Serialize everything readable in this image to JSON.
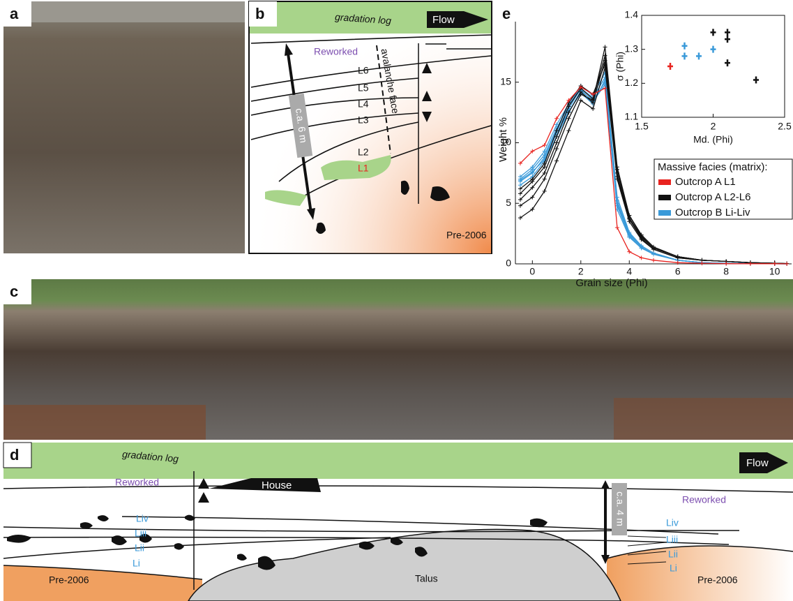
{
  "panel_labels": [
    "a",
    "b",
    "c",
    "d",
    "e"
  ],
  "diagram_b": {
    "header": "gradation log",
    "flow": "Flow",
    "reworked": "Reworked",
    "layers": [
      "L6",
      "L5",
      "L4",
      "L3",
      "L2",
      "L1"
    ],
    "avalanche": "avalanche face",
    "thickness": "c.a. 6 m",
    "base": "Pre-2006"
  },
  "diagram_d": {
    "header": "gradation log",
    "house": "House",
    "flow": "Flow",
    "reworked_left": "Reworked",
    "reworked_right": "Reworked",
    "layers_left": [
      "Liv",
      "Liii",
      "Lii",
      "Li"
    ],
    "layers_right": [
      "Liv",
      "Liii",
      "Lii",
      "Li"
    ],
    "thickness": "c.a. 4 m",
    "base_left": "Pre-2006",
    "base_right": "Pre-2006",
    "talus": "Talus"
  },
  "chart_data": [
    {
      "type": "line",
      "xlabel": "Grain size (Phi)",
      "ylabel": "Weight %",
      "xlim": [
        -0.7,
        10.7
      ],
      "ylim": [
        0,
        20
      ],
      "xticks": [
        0,
        2,
        4,
        6,
        8,
        10
      ],
      "yticks": [
        0,
        5,
        10,
        15
      ],
      "legend": "right",
      "legend_title": "Massive facies (matrix):",
      "x": [
        -0.5,
        0,
        0.5,
        1,
        1.5,
        2,
        2.5,
        3,
        3.5,
        4,
        4.5,
        5,
        6,
        7,
        8,
        9,
        10,
        10.5
      ],
      "series": [
        {
          "name": "Outcrop A L1",
          "color": "#e8231f",
          "curves": [
            [
              8.3,
              9.3,
              9.8,
              12,
              13.5,
              14.6,
              14,
              14.5,
              3,
              1,
              0.5,
              0.3,
              0.1,
              0.05,
              0.02,
              0.01,
              0.01,
              0
            ]
          ]
        },
        {
          "name": "Outcrop A L2-L6",
          "color": "#111111",
          "curves": [
            [
              3.8,
              4.5,
              6,
              8.5,
              11,
              13.5,
              12.8,
              16.2,
              7,
              3.5,
              2,
              1.2,
              0.5,
              0.3,
              0.2,
              0.1,
              0.05,
              0.02
            ],
            [
              4.8,
              5.5,
              7,
              9.5,
              12,
              14,
              13.5,
              17.9,
              8,
              4,
              2.3,
              1.3,
              0.6,
              0.3,
              0.2,
              0.1,
              0.05,
              0.02
            ],
            [
              5.3,
              6.3,
              7.5,
              10,
              12.5,
              14.2,
              13.3,
              16.8,
              7.5,
              3.8,
              2.2,
              1.3,
              0.6,
              0.3,
              0.2,
              0.1,
              0.05,
              0.02
            ],
            [
              5.8,
              6.8,
              8,
              10.5,
              13,
              14.5,
              13.6,
              17.2,
              7.8,
              4,
              2.4,
              1.4,
              0.6,
              0.3,
              0.2,
              0.1,
              0.05,
              0.02
            ],
            [
              6.2,
              7,
              8.3,
              11,
              13.3,
              14.7,
              14,
              16.5,
              7.2,
              3.7,
              2.1,
              1.2,
              0.5,
              0.3,
              0.2,
              0.1,
              0.05,
              0.02
            ]
          ]
        },
        {
          "name": "Outcrop B Li-Liv",
          "color": "#3a9ad9",
          "curves": [
            [
              6.5,
              7.2,
              8.5,
              10.5,
              12.5,
              14.3,
              13.5,
              15,
              4.5,
              2.2,
              1.3,
              0.8,
              0.3,
              0.1,
              0.05,
              0.02,
              0.01,
              0
            ],
            [
              6.8,
              7.5,
              8.8,
              11,
              12.8,
              14.5,
              13.7,
              15.4,
              5,
              2.4,
              1.4,
              0.8,
              0.3,
              0.1,
              0.05,
              0.02,
              0.01,
              0
            ],
            [
              7,
              7.8,
              9,
              11.2,
              13,
              14.7,
              13.9,
              15.8,
              5.5,
              2.6,
              1.5,
              0.9,
              0.3,
              0.1,
              0.05,
              0.02,
              0.01,
              0
            ],
            [
              7.2,
              8,
              9.3,
              11.5,
              13.2,
              14.4,
              13.4,
              14.8,
              4.8,
              2.3,
              1.3,
              0.8,
              0.3,
              0.1,
              0.05,
              0.02,
              0.01,
              0
            ],
            [
              6.9,
              7.6,
              8.6,
              10.8,
              12.6,
              14.1,
              13.2,
              15.2,
              5.2,
              2.5,
              1.4,
              0.8,
              0.3,
              0.1,
              0.05,
              0.02,
              0.01,
              0
            ]
          ]
        }
      ]
    },
    {
      "type": "scatter",
      "xlabel": "Md. (Phi)",
      "ylabel": "σ (Phi)",
      "xlim": [
        1.5,
        2.5
      ],
      "ylim": [
        1.1,
        1.4
      ],
      "xticks": [
        1.5,
        2,
        2.5
      ],
      "yticks": [
        1.1,
        1.2,
        1.3,
        1.4
      ],
      "series": [
        {
          "color": "#e8231f",
          "x": [
            1.7
          ],
          "y": [
            1.25
          ]
        },
        {
          "color": "#3a9ad9",
          "x": [
            1.8,
            1.8,
            1.9,
            2.0
          ],
          "y": [
            1.31,
            1.28,
            1.28,
            1.3
          ]
        },
        {
          "color": "#111111",
          "x": [
            2.0,
            2.1,
            2.1,
            2.1,
            2.3
          ],
          "y": [
            1.35,
            1.35,
            1.33,
            1.26,
            1.21
          ]
        }
      ]
    }
  ]
}
